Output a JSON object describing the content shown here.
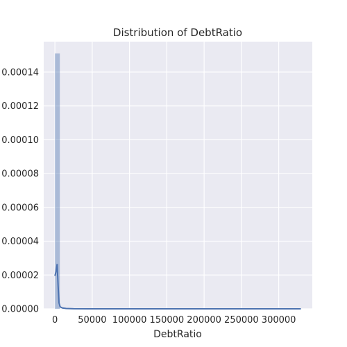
{
  "chart_data": {
    "type": "histogram",
    "title": "Distribution of DebtRatio",
    "xlabel": "DebtRatio",
    "ylabel": "",
    "xlim": [
      -15000,
      345000
    ],
    "ylim": [
      0,
      0.000158
    ],
    "x_ticks": [
      {
        "value": 0,
        "label": "0"
      },
      {
        "value": 50000,
        "label": "50000"
      },
      {
        "value": 100000,
        "label": "100000"
      },
      {
        "value": 150000,
        "label": "150000"
      },
      {
        "value": 200000,
        "label": "200000"
      },
      {
        "value": 250000,
        "label": "250000"
      },
      {
        "value": 300000,
        "label": "300000"
      }
    ],
    "y_ticks": [
      {
        "value": 0,
        "label": "0.00000"
      },
      {
        "value": 2e-05,
        "label": "0.00002"
      },
      {
        "value": 4e-05,
        "label": "0.00004"
      },
      {
        "value": 6e-05,
        "label": "0.00006"
      },
      {
        "value": 8e-05,
        "label": "0.00008"
      },
      {
        "value": 0.0001,
        "label": "0.00010"
      },
      {
        "value": 0.00012,
        "label": "0.00012"
      },
      {
        "value": 0.00014,
        "label": "0.00014"
      }
    ],
    "bins": [
      {
        "x0": 0,
        "x1": 6600,
        "density": 0.000151
      }
    ],
    "kde": [
      [
        0,
        1.95e-05
      ],
      [
        1500,
        2.2e-05
      ],
      [
        3000,
        2.65e-05
      ],
      [
        4300,
        1.35e-05
      ],
      [
        5500,
        3.5e-06
      ],
      [
        7000,
        1.2e-06
      ],
      [
        10000,
        5e-07
      ],
      [
        15000,
        2e-07
      ],
      [
        25000,
        5e-08
      ],
      [
        50000,
        0.0
      ],
      [
        100000,
        0.0
      ],
      [
        200000,
        0.0
      ],
      [
        329700,
        0.0
      ]
    ],
    "colors": {
      "background": "#eaeaf2",
      "grid": "#ffffff",
      "bar": "#4c72b0",
      "line": "#4c72b0"
    },
    "grid": true
  }
}
